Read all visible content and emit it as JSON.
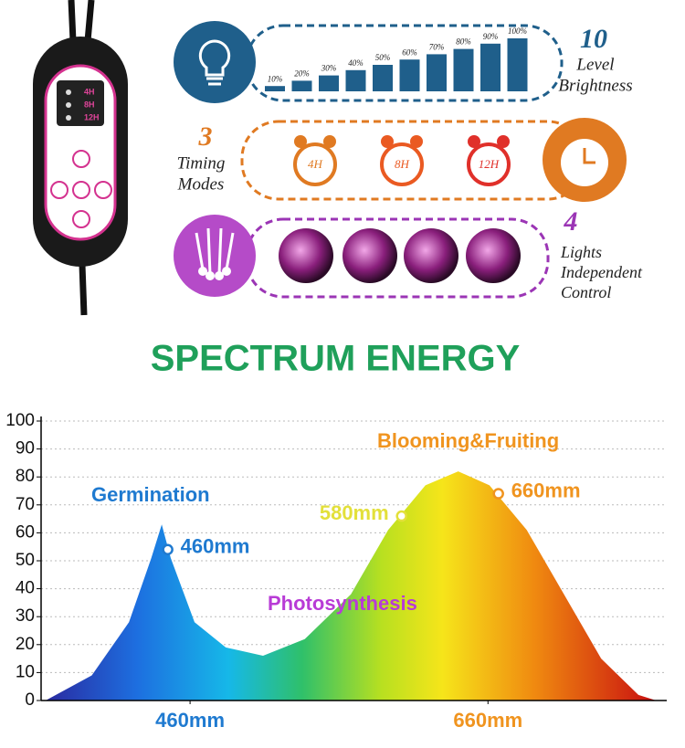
{
  "remote": {
    "timers": [
      "4H",
      "8H",
      "12H"
    ]
  },
  "brightness": {
    "number": "10",
    "lines": [
      "Level",
      "Brightness"
    ],
    "values": [
      10,
      20,
      30,
      40,
      50,
      60,
      70,
      80,
      90,
      100
    ],
    "value_labels": [
      "10%",
      "20%",
      "30%",
      "40%",
      "50%",
      "60%",
      "70%",
      "80%",
      "90%",
      "100%"
    ],
    "color": "#1f5f8b"
  },
  "timing": {
    "number": "3",
    "lines": [
      "Timing",
      "Modes"
    ],
    "clocks": [
      "4H",
      "8H",
      "12H"
    ]
  },
  "lights": {
    "number": "4",
    "lines": [
      "Lights",
      "Independent",
      "Control"
    ]
  },
  "chart_data": {
    "type": "area",
    "title": "SPECTRUM ENERGY",
    "x": [
      363,
      394,
      419,
      434,
      441,
      447,
      463,
      484,
      509,
      537,
      568,
      593,
      618,
      640,
      661,
      686,
      711,
      736,
      761,
      773
    ],
    "values": [
      0,
      9,
      28,
      51,
      63,
      51,
      28,
      19,
      16,
      22,
      38,
      61,
      77,
      82,
      77,
      61,
      38,
      15,
      2,
      0
    ],
    "xlim": [
      360,
      780
    ],
    "xticks": [
      {
        "value": 460,
        "label": "460mm"
      },
      {
        "value": 660,
        "label": "660mm"
      }
    ],
    "ylim": [
      0,
      100
    ],
    "yticks": [
      0,
      10,
      20,
      30,
      40,
      50,
      60,
      70,
      80,
      90,
      100
    ],
    "grid": true,
    "regions": [
      {
        "text": "Germination",
        "color": "#1f7ad0"
      },
      {
        "text": "Photosynthesis",
        "color": "#b83bd6"
      },
      {
        "text": "Blooming&Fruiting",
        "color": "#f0941f"
      }
    ],
    "markers": [
      {
        "text": "460mm",
        "x": 445,
        "y": 54,
        "color": "#1f7ad0"
      },
      {
        "text": "580mm",
        "x": 602,
        "y": 66,
        "color": "#e3e03a"
      },
      {
        "text": "660mm",
        "x": 667,
        "y": 74,
        "color": "#f0941f"
      }
    ]
  }
}
